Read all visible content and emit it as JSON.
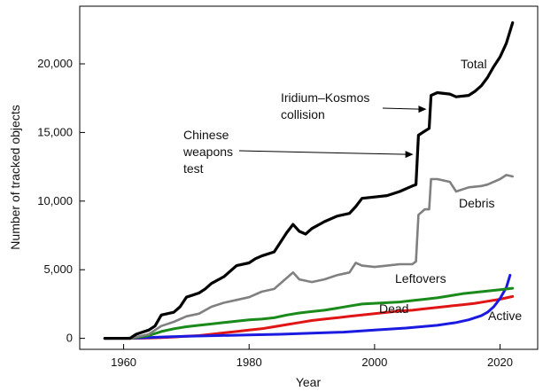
{
  "chart_data": {
    "type": "line",
    "xlabel": "Year",
    "ylabel": "Number of tracked objects",
    "xlim": [
      1953,
      2026
    ],
    "ylim": [
      -800,
      24200
    ],
    "xticks": [
      1960,
      1980,
      2000,
      2020
    ],
    "yticks": [
      0,
      5000,
      10000,
      15000,
      20000
    ],
    "ytick_labels": [
      "0",
      "5,000",
      "10,000",
      "15,000",
      "20,000"
    ],
    "grid": false,
    "legend": "none",
    "series": [
      {
        "name": "Total",
        "color": "#000000",
        "points": [
          [
            1957,
            0
          ],
          [
            1961,
            0
          ],
          [
            1962,
            300
          ],
          [
            1963,
            450
          ],
          [
            1964,
            600
          ],
          [
            1965,
            900
          ],
          [
            1966,
            1700
          ],
          [
            1968,
            1900
          ],
          [
            1969,
            2300
          ],
          [
            1970,
            3000
          ],
          [
            1972,
            3300
          ],
          [
            1973,
            3600
          ],
          [
            1974,
            4000
          ],
          [
            1976,
            4500
          ],
          [
            1978,
            5300
          ],
          [
            1980,
            5500
          ],
          [
            1981,
            5800
          ],
          [
            1982,
            6000
          ],
          [
            1984,
            6300
          ],
          [
            1985,
            7000
          ],
          [
            1986,
            7700
          ],
          [
            1987,
            8300
          ],
          [
            1988,
            7800
          ],
          [
            1989,
            7600
          ],
          [
            1990,
            8000
          ],
          [
            1992,
            8500
          ],
          [
            1994,
            8900
          ],
          [
            1996,
            9100
          ],
          [
            1997,
            9600
          ],
          [
            1998,
            10200
          ],
          [
            2000,
            10300
          ],
          [
            2002,
            10400
          ],
          [
            2004,
            10700
          ],
          [
            2006,
            11100
          ],
          [
            2006.6,
            11200
          ],
          [
            2007,
            14800
          ],
          [
            2008,
            15100
          ],
          [
            2008.7,
            15300
          ],
          [
            2009,
            17700
          ],
          [
            2010,
            17900
          ],
          [
            2012,
            17800
          ],
          [
            2013,
            17600
          ],
          [
            2015,
            17700
          ],
          [
            2016,
            18000
          ],
          [
            2017,
            18400
          ],
          [
            2018,
            19000
          ],
          [
            2019,
            19800
          ],
          [
            2020,
            20500
          ],
          [
            2021,
            21500
          ],
          [
            2022,
            23000
          ]
        ]
      },
      {
        "name": "Debris",
        "color": "#808080",
        "points": [
          [
            1961,
            0
          ],
          [
            1962,
            100
          ],
          [
            1964,
            300
          ],
          [
            1966,
            900
          ],
          [
            1968,
            1200
          ],
          [
            1970,
            1600
          ],
          [
            1972,
            1800
          ],
          [
            1974,
            2300
          ],
          [
            1976,
            2600
          ],
          [
            1978,
            2800
          ],
          [
            1980,
            3000
          ],
          [
            1982,
            3400
          ],
          [
            1984,
            3600
          ],
          [
            1986,
            4400
          ],
          [
            1987,
            4800
          ],
          [
            1988,
            4300
          ],
          [
            1990,
            4100
          ],
          [
            1992,
            4300
          ],
          [
            1994,
            4600
          ],
          [
            1996,
            4800
          ],
          [
            1997,
            5500
          ],
          [
            1998,
            5300
          ],
          [
            2000,
            5200
          ],
          [
            2002,
            5300
          ],
          [
            2004,
            5400
          ],
          [
            2006,
            5400
          ],
          [
            2006.6,
            5600
          ],
          [
            2007,
            9000
          ],
          [
            2008,
            9400
          ],
          [
            2008.7,
            9400
          ],
          [
            2009,
            11600
          ],
          [
            2010,
            11600
          ],
          [
            2012,
            11400
          ],
          [
            2013,
            10700
          ],
          [
            2015,
            11000
          ],
          [
            2017,
            11100
          ],
          [
            2018,
            11200
          ],
          [
            2020,
            11600
          ],
          [
            2021,
            11900
          ],
          [
            2022,
            11800
          ]
        ]
      },
      {
        "name": "Leftovers",
        "color": "#1a8a1a",
        "points": [
          [
            1961,
            0
          ],
          [
            1964,
            200
          ],
          [
            1966,
            500
          ],
          [
            1968,
            700
          ],
          [
            1970,
            850
          ],
          [
            1972,
            950
          ],
          [
            1974,
            1050
          ],
          [
            1976,
            1150
          ],
          [
            1978,
            1250
          ],
          [
            1980,
            1350
          ],
          [
            1982,
            1400
          ],
          [
            1984,
            1500
          ],
          [
            1986,
            1700
          ],
          [
            1988,
            1850
          ],
          [
            1990,
            1950
          ],
          [
            1992,
            2050
          ],
          [
            1994,
            2200
          ],
          [
            1996,
            2350
          ],
          [
            1998,
            2500
          ],
          [
            2000,
            2550
          ],
          [
            2002,
            2600
          ],
          [
            2004,
            2650
          ],
          [
            2006,
            2750
          ],
          [
            2008,
            2850
          ],
          [
            2010,
            2950
          ],
          [
            2012,
            3100
          ],
          [
            2014,
            3250
          ],
          [
            2016,
            3350
          ],
          [
            2018,
            3450
          ],
          [
            2020,
            3550
          ],
          [
            2022,
            3650
          ]
        ]
      },
      {
        "name": "Dead",
        "color": "#e01515",
        "points": [
          [
            1961,
            0
          ],
          [
            1964,
            20
          ],
          [
            1966,
            50
          ],
          [
            1968,
            100
          ],
          [
            1970,
            150
          ],
          [
            1972,
            200
          ],
          [
            1974,
            300
          ],
          [
            1976,
            400
          ],
          [
            1978,
            500
          ],
          [
            1980,
            600
          ],
          [
            1982,
            700
          ],
          [
            1984,
            850
          ],
          [
            1986,
            1000
          ],
          [
            1988,
            1150
          ],
          [
            1990,
            1300
          ],
          [
            1992,
            1400
          ],
          [
            1994,
            1500
          ],
          [
            1996,
            1600
          ],
          [
            1998,
            1700
          ],
          [
            2000,
            1800
          ],
          [
            2002,
            1900
          ],
          [
            2004,
            2000
          ],
          [
            2006,
            2050
          ],
          [
            2008,
            2150
          ],
          [
            2010,
            2250
          ],
          [
            2012,
            2350
          ],
          [
            2014,
            2450
          ],
          [
            2016,
            2550
          ],
          [
            2018,
            2700
          ],
          [
            2020,
            2850
          ],
          [
            2022,
            3050
          ]
        ]
      },
      {
        "name": "Active",
        "color": "#1a1ae0",
        "points": [
          [
            1957,
            0
          ],
          [
            1960,
            10
          ],
          [
            1962,
            30
          ],
          [
            1964,
            60
          ],
          [
            1966,
            100
          ],
          [
            1970,
            150
          ],
          [
            1975,
            200
          ],
          [
            1980,
            250
          ],
          [
            1985,
            300
          ],
          [
            1990,
            380
          ],
          [
            1995,
            450
          ],
          [
            2000,
            600
          ],
          [
            2005,
            750
          ],
          [
            2010,
            950
          ],
          [
            2013,
            1150
          ],
          [
            2015,
            1350
          ],
          [
            2017,
            1650
          ],
          [
            2018,
            1900
          ],
          [
            2019,
            2300
          ],
          [
            2020,
            2900
          ],
          [
            2021,
            3700
          ],
          [
            2021.6,
            4600
          ]
        ]
      }
    ],
    "annotations": [
      {
        "lines": [
          "Total"
        ],
        "series_label": true
      },
      {
        "lines": [
          "Debris"
        ],
        "series_label": true
      },
      {
        "lines": [
          "Leftovers"
        ],
        "series_label": true
      },
      {
        "lines": [
          "Dead"
        ],
        "series_label": true
      },
      {
        "lines": [
          "Active"
        ],
        "series_label": true
      },
      {
        "lines": [
          "Chinese",
          "weapons",
          "test"
        ],
        "arrow_to": [
          2006.6,
          13400
        ]
      },
      {
        "lines": [
          "Iridium–Kosmos",
          "collision"
        ],
        "arrow_to": [
          2008.7,
          16700
        ]
      }
    ]
  }
}
